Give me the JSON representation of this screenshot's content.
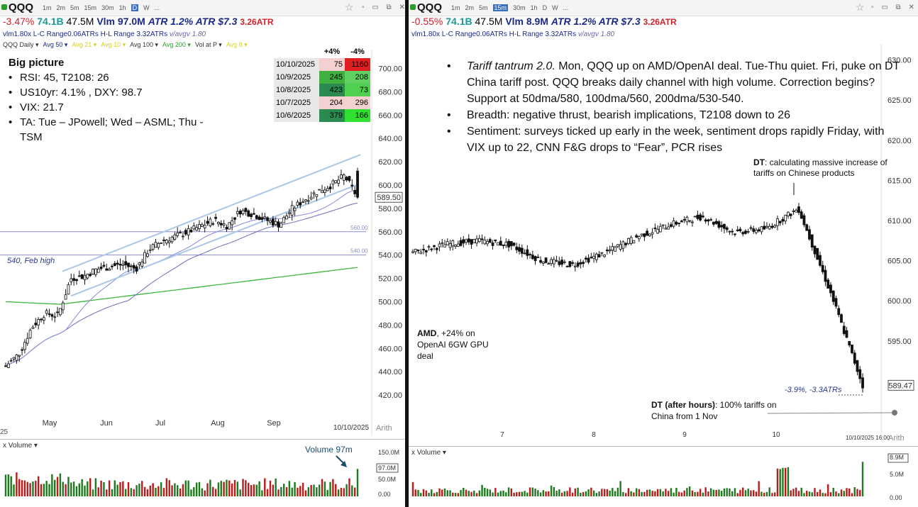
{
  "left": {
    "symbol": "QQQ",
    "timeframes": [
      "1m",
      "2m",
      "5m",
      "15m",
      "30m",
      "1h",
      "D",
      "W",
      "..."
    ],
    "active_tf": "D",
    "change": "-3.47%",
    "mcap": "74.1B",
    "avgvol": "47.5M",
    "vlm": "Vlm 97.0M",
    "atr": "ATR 1.2% ATR $7.3",
    "atr_count": "3.26ATR",
    "line2": "vlm1.80x  L-C Range0.06ATRs   H-L Range 3.32ATRs",
    "avgv": "v/avgv 1.80",
    "ma_items": [
      {
        "label": "QQQ Daily",
        "color": "#333333"
      },
      {
        "label": "Avg 50",
        "color": "#1a2a8a"
      },
      {
        "label": "Avg 21",
        "color": "#d8d020"
      },
      {
        "label": "Avg 10",
        "color": "#d8d020"
      },
      {
        "label": "Avg 100",
        "color": "#333333"
      },
      {
        "label": "Avg 200",
        "color": "#2a9d2a"
      },
      {
        "label": "Vol at P",
        "color": "#333333"
      },
      {
        "label": "Avg 8",
        "color": "#d8d020"
      }
    ],
    "big_picture_title": "Big picture",
    "big_picture": [
      "RSI: 45, T2108: 26",
      "US10yr: 4.1% , DXY: 98.7",
      "VIX: 21.7",
      "TA: Tue – JPowell; Wed – ASML; Thu -\nTSM"
    ],
    "breadth_header": [
      "+4%",
      "-4%"
    ],
    "breadth": [
      {
        "date": "10/10/2025",
        "up": "75",
        "down": "1160",
        "upc": "#f4d0d0",
        "downc": "#e02020"
      },
      {
        "date": "10/9/2025",
        "up": "245",
        "down": "208",
        "upc": "#40b040",
        "downc": "#60d060"
      },
      {
        "date": "10/8/2025",
        "up": "423",
        "down": "73",
        "upc": "#2a8a50",
        "downc": "#50d050"
      },
      {
        "date": "10/7/2025",
        "up": "204",
        "down": "296",
        "upc": "#f4d0d0",
        "downc": "#f4d0d0"
      },
      {
        "date": "10/6/2025",
        "up": "379",
        "down": "166",
        "upc": "#2a8a50",
        "downc": "#30e030"
      }
    ],
    "feb_high_label": "540, Feb high",
    "last_price": "589.50",
    "date_label": "10/10/2025",
    "scale": "Arith",
    "start_label": "25",
    "volume_label": "Volume",
    "volume_anno": "Volume 97m",
    "vol_ticks": [
      "150.0M",
      "97.0M",
      "50.0M",
      "0.00"
    ]
  },
  "right": {
    "symbol": "QQQ",
    "timeframes": [
      "1m",
      "2m",
      "5m",
      "15m",
      "30m",
      "1h",
      "D",
      "W",
      "..."
    ],
    "active_tf": "15m",
    "change": "-0.55%",
    "mcap": "74.1B",
    "avgvol": "47.5M",
    "vlm": "Vlm 8.9M",
    "atr": "ATR 1.2% ATR $7.3",
    "atr_count": "3.26ATR",
    "line2": "vlm1.80x  L-C Range0.06ATRs   H-L Range 3.32ATRs",
    "avgv": "v/avgv 1.80",
    "notes": [
      "<i>Tariff tantrum 2.0.</i>  Mon, QQQ up on AMD/OpenAI deal. Tue-Thu quiet. Fri, puke on DT China tariff post.  QQQ breaks daily channel with high volume. Correction begins?  Support at 50dma/580, 100dma/560, 200dma/530-540.",
      "Breadth: negative thrust, bearish implications, T2108 down to 26",
      "Sentiment: surveys ticked up early in the week, sentiment drops rapidly Friday, with VIX up to 22, CNN F&G drops to “Fear”, PCR rises"
    ],
    "dt_anno": "<b>DT</b>:  calculating massive increase of tariffs on Chinese products",
    "amd_anno": "<b>AMD</b>, +24% on OpenAI 6GW GPU deal",
    "dt2_anno": "<b>DT  (after hours)</b>: 100% tariffs on China  from 1 Nov",
    "drop_anno": "-3.9%, -3.3ATRs",
    "last_price": "589.47",
    "date_label": "10/10/2025 16:00",
    "scale": "Arith",
    "volume_label": "Volume",
    "vol_ticks": [
      "8.9M",
      "5.0M",
      "0.00"
    ]
  },
  "chart_data": [
    {
      "type": "candlestick",
      "title": "QQQ Daily",
      "ylim": [
        400,
        710
      ],
      "y_ticks": [
        420,
        440,
        460,
        480,
        500,
        520,
        540,
        560,
        580,
        600,
        620,
        640,
        660,
        680,
        700
      ],
      "x_ticks": [
        "May",
        "Jun",
        "Jul",
        "Aug",
        "Sep"
      ],
      "close_path": [
        [
          "2025-04-07",
          445
        ],
        [
          "2025-04-14",
          455
        ],
        [
          "2025-04-21",
          478
        ],
        [
          "2025-04-28",
          490
        ],
        [
          "2025-05-05",
          488
        ],
        [
          "2025-05-12",
          520
        ],
        [
          "2025-05-19",
          522
        ],
        [
          "2025-05-26",
          528
        ],
        [
          "2025-06-02",
          530
        ],
        [
          "2025-06-09",
          532
        ],
        [
          "2025-06-16",
          528
        ],
        [
          "2025-06-23",
          545
        ],
        [
          "2025-06-30",
          552
        ],
        [
          "2025-07-07",
          556
        ],
        [
          "2025-07-14",
          560
        ],
        [
          "2025-07-21",
          565
        ],
        [
          "2025-07-28",
          570
        ],
        [
          "2025-08-04",
          565
        ],
        [
          "2025-08-11",
          578
        ],
        [
          "2025-08-18",
          575
        ],
        [
          "2025-08-25",
          570
        ],
        [
          "2025-09-01",
          566
        ],
        [
          "2025-09-08",
          580
        ],
        [
          "2025-09-15",
          588
        ],
        [
          "2025-09-22",
          595
        ],
        [
          "2025-09-29",
          600
        ],
        [
          "2025-10-06",
          608
        ],
        [
          "2025-10-10",
          589.5
        ]
      ],
      "horizontal_levels": [
        540,
        560
      ],
      "last": 589.5
    },
    {
      "type": "candlestick",
      "title": "QQQ 15m",
      "ylim": [
        588,
        632
      ],
      "y_ticks": [
        595,
        600,
        605,
        610,
        615,
        620,
        625,
        630
      ],
      "x_ticks": [
        "7",
        "8",
        "9",
        "10"
      ],
      "close_path": [
        [
          "Oct 6 open",
          606
        ],
        [
          "Oct 6 mid",
          607
        ],
        [
          "Oct 6 close",
          607.5
        ],
        [
          "Oct 7 open",
          607
        ],
        [
          "Oct 7 mid",
          605
        ],
        [
          "Oct 7 close",
          604.5
        ],
        [
          "Oct 8 open",
          606
        ],
        [
          "Oct 8 mid",
          608
        ],
        [
          "Oct 8 close",
          609.5
        ],
        [
          "Oct 9 open",
          610.5
        ],
        [
          "Oct 9 mid",
          608.5
        ],
        [
          "Oct 9 close",
          609
        ],
        [
          "Oct 10 open",
          611.5
        ],
        [
          "Oct 10 mid",
          601
        ],
        [
          "Oct 10 close",
          589.47
        ]
      ],
      "last": 589.47
    }
  ]
}
